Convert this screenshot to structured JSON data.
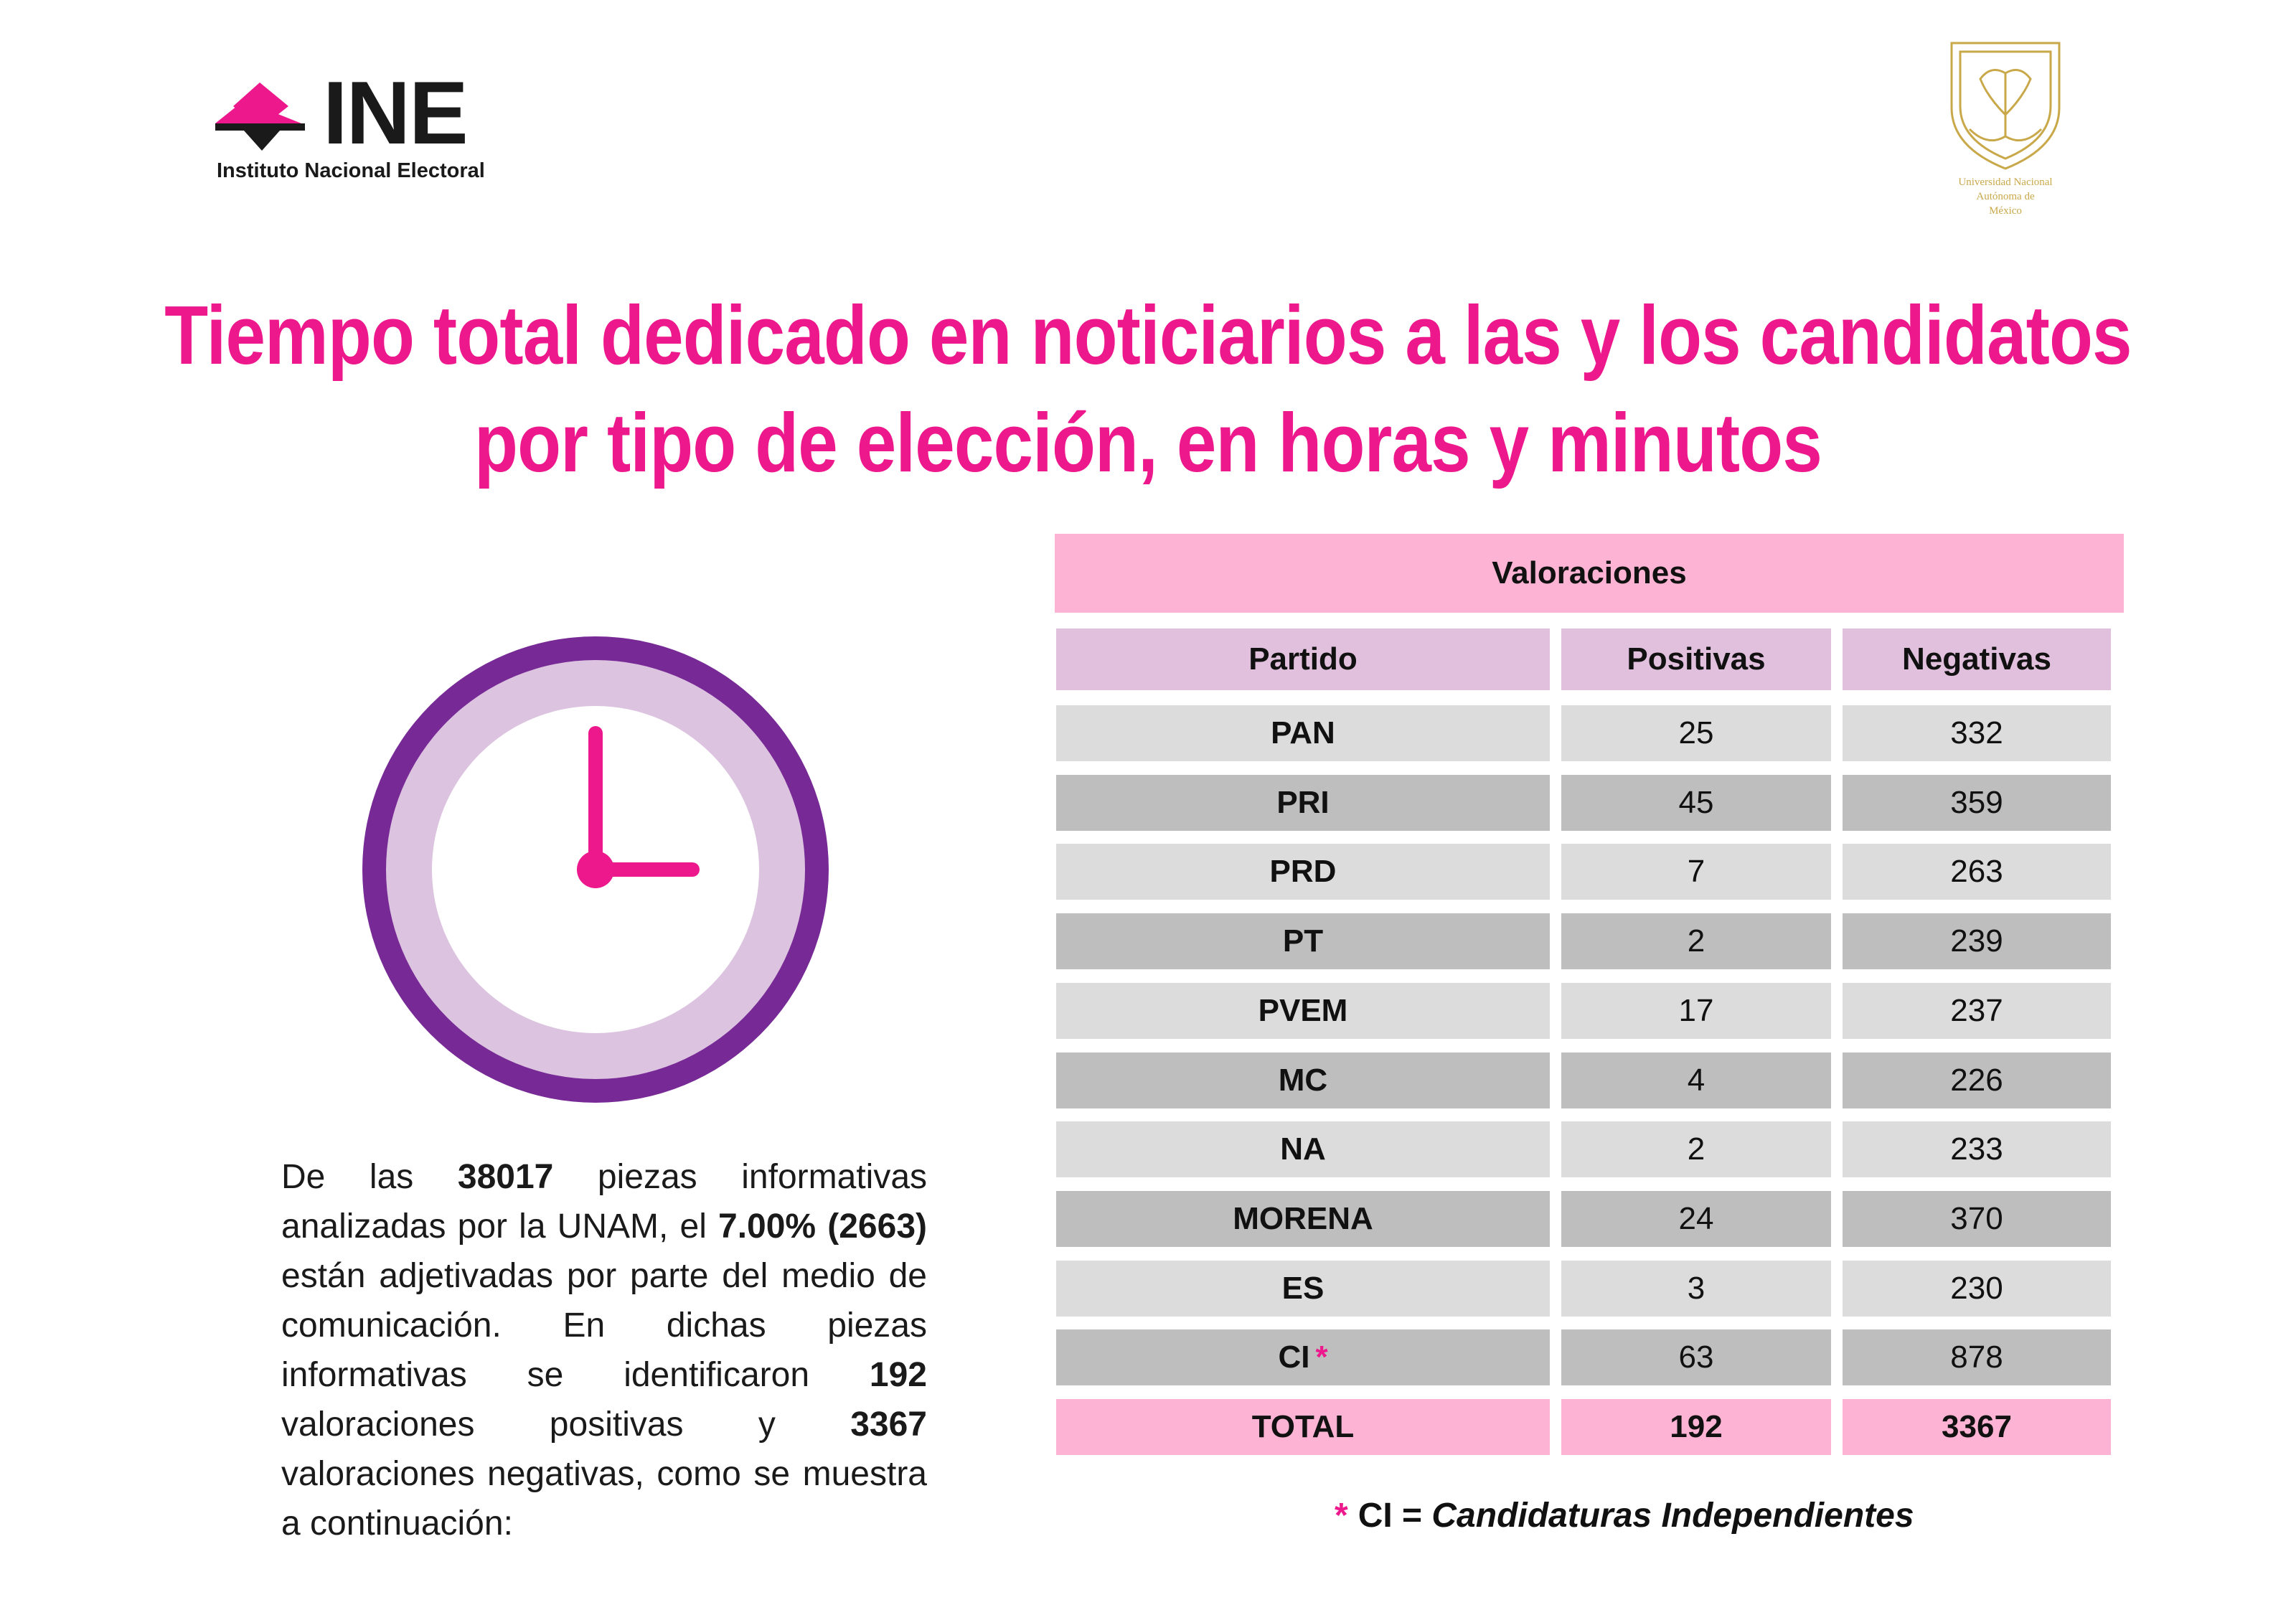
{
  "logo_left": {
    "word": "INE",
    "subtitle": "Instituto Nacional Electoral"
  },
  "logo_right": {
    "lines": [
      "Universidad Nacional",
      "Autónoma de",
      "México"
    ],
    "color": "#c9a84a"
  },
  "title": {
    "line1": "Tiempo total dedicado en noticiarios a las y los candidatos",
    "line2": "por tipo de elección, en horas y minutos"
  },
  "summary": {
    "t1": "De las ",
    "b1": "38017",
    "t2": " piezas informativas analizadas por la UNAM, el ",
    "b2": "7.00% (2663)",
    "t3": " están adjetivadas por parte del medio de comunicación. En dichas piezas informativas se identificaron ",
    "b3": "192",
    "t4": " valoraciones positivas y ",
    "b4": "3367",
    "t5": " valoraciones negativas, como se muestra a continuación:"
  },
  "table": {
    "band": "Valoraciones",
    "headers": [
      "Partido",
      "Positivas",
      "Negativas"
    ],
    "rows": [
      {
        "partido": "PAN",
        "positivas": "25",
        "negativas": "332"
      },
      {
        "partido": "PRI",
        "positivas": "45",
        "negativas": "359"
      },
      {
        "partido": "PRD",
        "positivas": "7",
        "negativas": "263"
      },
      {
        "partido": "PT",
        "positivas": "2",
        "negativas": "239"
      },
      {
        "partido": "PVEM",
        "positivas": "17",
        "negativas": "237"
      },
      {
        "partido": "MC",
        "positivas": "4",
        "negativas": "226"
      },
      {
        "partido": "NA",
        "positivas": "2",
        "negativas": "233"
      },
      {
        "partido": "MORENA",
        "positivas": "24",
        "negativas": "370"
      },
      {
        "partido": "ES",
        "positivas": "3",
        "negativas": "230"
      },
      {
        "partido": "CI",
        "positivas": "63",
        "negativas": "878",
        "mark": "*"
      }
    ],
    "total": {
      "partido": "TOTAL",
      "positivas": "192",
      "negativas": "3367"
    }
  },
  "footnote": {
    "star": "*",
    "abbr": "CI = ",
    "meaning": "Candidaturas Independientes"
  },
  "colors": {
    "accent_pink": "#ec188c",
    "clock_ring": "#772a96",
    "clock_face": "#dcc3e0",
    "band_pink": "#fdb3d3",
    "header_lilac": "#e1c0dd"
  }
}
